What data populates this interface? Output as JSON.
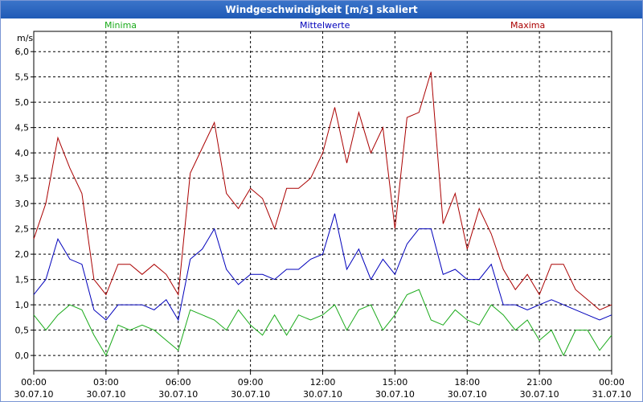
{
  "window": {
    "title": "Windgeschwindigkeit [m/s] skaliert"
  },
  "colors": {
    "min": "#1aaa1a",
    "mean": "#0000bb",
    "max": "#aa0000",
    "title_bg": "#2b65c0"
  },
  "chart_data": {
    "type": "line",
    "title": "Windgeschwindigkeit [m/s] skaliert",
    "ylabel": "m/s",
    "xlabel": "",
    "ylim": [
      -0.3,
      6.4
    ],
    "xlim": [
      0,
      24
    ],
    "grid": true,
    "legend_position": "top",
    "y_ticks": [
      "0,0",
      "0,5",
      "1,0",
      "1,5",
      "2,0",
      "2,5",
      "3,0",
      "3,5",
      "4,0",
      "4,5",
      "5,0",
      "5,5",
      "6,0"
    ],
    "x_ticks": [
      {
        "t": 0,
        "time": "00:00",
        "date": "30.07.10"
      },
      {
        "t": 3,
        "time": "03:00",
        "date": "30.07.10"
      },
      {
        "t": 6,
        "time": "06:00",
        "date": "30.07.10"
      },
      {
        "t": 9,
        "time": "09:00",
        "date": "30.07.10"
      },
      {
        "t": 12,
        "time": "12:00",
        "date": "30.07.10"
      },
      {
        "t": 15,
        "time": "15:00",
        "date": "30.07.10"
      },
      {
        "t": 18,
        "time": "18:00",
        "date": "30.07.10"
      },
      {
        "t": 21,
        "time": "21:00",
        "date": "30.07.10"
      },
      {
        "t": 24,
        "time": "00:00",
        "date": "31.07.10"
      }
    ],
    "series": [
      {
        "name": "Minima",
        "color": "#1aaa1a",
        "x": [
          0,
          0.5,
          1,
          1.5,
          2,
          2.5,
          3,
          3.5,
          4,
          4.5,
          5,
          5.5,
          6,
          6.5,
          7,
          7.5,
          8,
          8.5,
          9,
          9.5,
          10,
          10.5,
          11,
          11.5,
          12,
          12.5,
          13,
          13.5,
          14,
          14.5,
          15,
          15.5,
          16,
          16.5,
          17,
          17.5,
          18,
          18.5,
          19,
          19.5,
          20,
          20.5,
          21,
          21.5,
          22,
          22.5,
          23,
          23.5,
          24
        ],
        "values": [
          0.8,
          0.5,
          0.8,
          1.0,
          0.9,
          0.4,
          0.0,
          0.6,
          0.5,
          0.6,
          0.5,
          0.3,
          0.1,
          0.9,
          0.8,
          0.7,
          0.5,
          0.9,
          0.6,
          0.4,
          0.8,
          0.4,
          0.8,
          0.7,
          0.8,
          1.0,
          0.5,
          0.9,
          1.0,
          0.5,
          0.8,
          1.2,
          1.3,
          0.7,
          0.6,
          0.9,
          0.7,
          0.6,
          1.0,
          0.8,
          0.5,
          0.7,
          0.3,
          0.5,
          0.0,
          0.5,
          0.5,
          0.1,
          0.4
        ]
      },
      {
        "name": "Mittelwerte",
        "color": "#0000bb",
        "x": [
          0,
          0.5,
          1,
          1.5,
          2,
          2.5,
          3,
          3.5,
          4,
          4.5,
          5,
          5.5,
          6,
          6.5,
          7,
          7.5,
          8,
          8.5,
          9,
          9.5,
          10,
          10.5,
          11,
          11.5,
          12,
          12.5,
          13,
          13.5,
          14,
          14.5,
          15,
          15.5,
          16,
          16.5,
          17,
          17.5,
          18,
          18.5,
          19,
          19.5,
          20,
          20.5,
          21,
          21.5,
          22,
          22.5,
          23,
          23.5,
          24
        ],
        "values": [
          1.2,
          1.5,
          2.3,
          1.9,
          1.8,
          0.9,
          0.7,
          1.0,
          1.0,
          1.0,
          0.9,
          1.1,
          0.7,
          1.9,
          2.1,
          2.5,
          1.7,
          1.4,
          1.6,
          1.6,
          1.5,
          1.7,
          1.7,
          1.9,
          2.0,
          2.8,
          1.7,
          2.1,
          1.5,
          1.9,
          1.6,
          2.2,
          2.5,
          2.5,
          1.6,
          1.7,
          1.5,
          1.5,
          1.8,
          1.0,
          1.0,
          0.9,
          1.0,
          1.1,
          1.0,
          0.9,
          0.8,
          0.7,
          0.8
        ]
      },
      {
        "name": "Maxima",
        "color": "#aa0000",
        "x": [
          0,
          0.5,
          1,
          1.5,
          2,
          2.5,
          3,
          3.5,
          4,
          4.5,
          5,
          5.5,
          6,
          6.5,
          7,
          7.5,
          8,
          8.5,
          9,
          9.5,
          10,
          10.5,
          11,
          11.5,
          12,
          12.5,
          13,
          13.5,
          14,
          14.5,
          15,
          15.5,
          16,
          16.5,
          17,
          17.5,
          18,
          18.5,
          19,
          19.5,
          20,
          20.5,
          21,
          21.5,
          22,
          22.5,
          23,
          23.5,
          24
        ],
        "values": [
          2.3,
          3.0,
          4.3,
          3.7,
          3.2,
          1.5,
          1.2,
          1.8,
          1.8,
          1.6,
          1.8,
          1.6,
          1.2,
          3.6,
          4.1,
          4.6,
          3.2,
          2.9,
          3.3,
          3.1,
          2.5,
          3.3,
          3.3,
          3.5,
          4.0,
          4.9,
          3.8,
          4.8,
          4.0,
          4.5,
          2.5,
          4.7,
          4.8,
          5.6,
          2.6,
          3.2,
          2.1,
          2.9,
          2.4,
          1.7,
          1.3,
          1.6,
          1.2,
          1.8,
          1.8,
          1.3,
          1.1,
          0.9,
          1.0
        ]
      }
    ]
  }
}
